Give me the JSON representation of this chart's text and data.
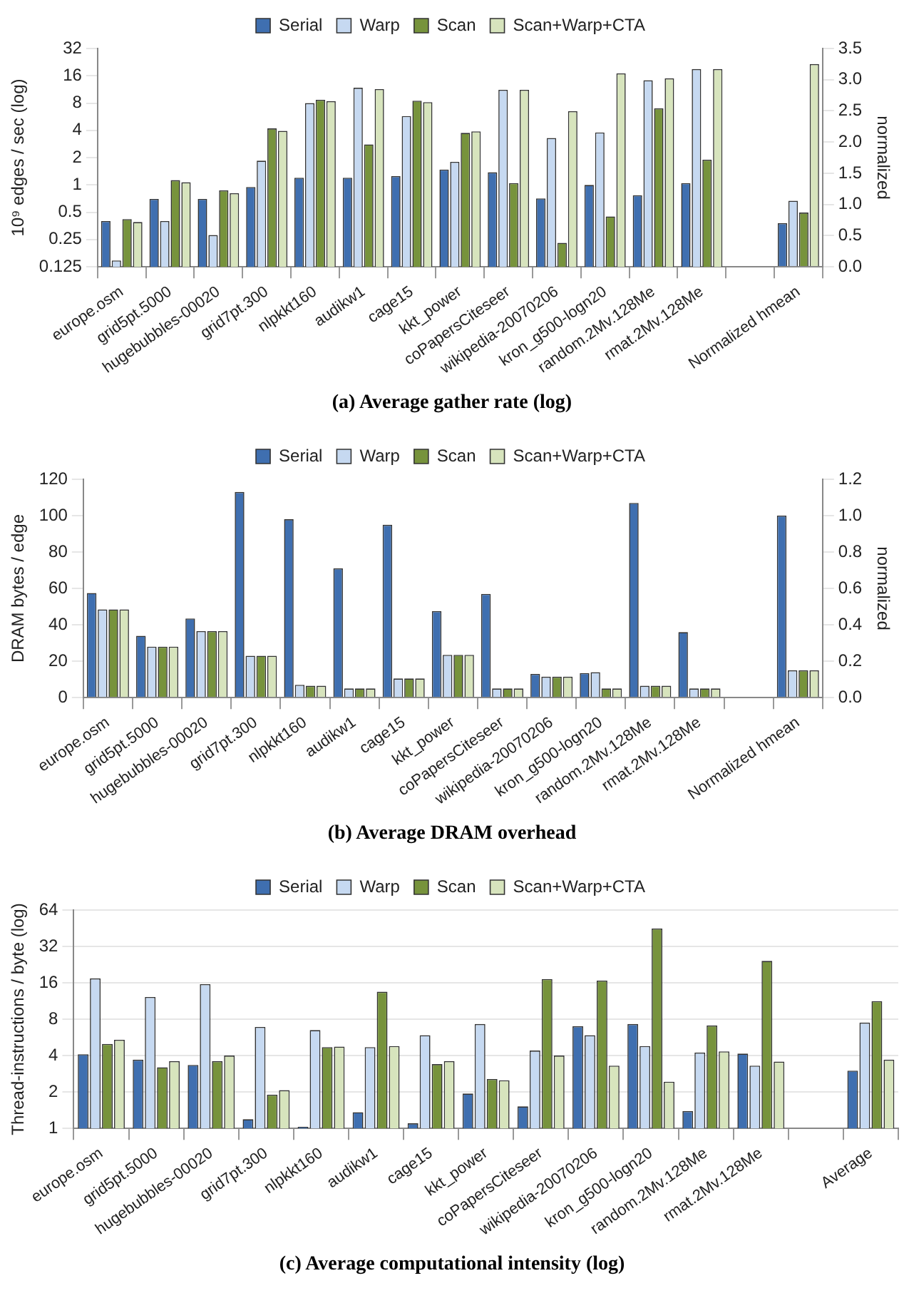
{
  "chart_data": [
    {
      "type": "bar",
      "title": "(a) Average gather rate (log)",
      "ylabel": "10⁹ edges / sec (log)",
      "y2label": "normalized",
      "log": "y",
      "legend": "top",
      "grid": false,
      "categories": [
        "europe.osm",
        "grid5pt.5000",
        "hugebubbles-00020",
        "grid7pt.300",
        "nlpkkt160",
        "audikw1",
        "cage15",
        "kkt_power",
        "coPapersCiteseer",
        "wikipedia-20070206",
        "kron_g500-logn20",
        "random.2Mv.128Me",
        "rmat.2Mv.128Me",
        null,
        "Normalized hmean"
      ],
      "ylim": [
        0.125,
        32
      ],
      "yticks": [
        0.125,
        0.25,
        0.5,
        1,
        2,
        4,
        8,
        16,
        32
      ],
      "y2lim": [
        0,
        3.5
      ],
      "y2ticks": [
        {
          "value": 0,
          "label": "0.0"
        },
        {
          "value": 0.5,
          "label": "0.5"
        },
        {
          "value": 1,
          "label": "1.0"
        },
        {
          "value": 1.5,
          "label": "1.5"
        },
        {
          "value": 2,
          "label": "2.0"
        },
        {
          "value": 2.5,
          "label": "2.5"
        },
        {
          "value": 3,
          "label": "3.0"
        },
        {
          "value": 3.5,
          "label": "3.5"
        }
      ],
      "series": [
        {
          "name": "Serial",
          "color": "#3f6fb0",
          "values": [
            0.4,
            0.7,
            0.7,
            0.95,
            1.2,
            1.2,
            1.25,
            1.48,
            1.38,
            0.71,
            1.0,
            0.77,
            1.05,
            null,
            null
          ]
        },
        {
          "name": "Warp",
          "color": "#c6d9f1",
          "values": [
            0.147,
            0.4,
            0.28,
            1.85,
            8.0,
            11.8,
            5.75,
            1.8,
            11.2,
            3.3,
            3.8,
            14.3,
            19,
            null,
            null
          ]
        },
        {
          "name": "Scan",
          "color": "#77933c",
          "values": [
            0.42,
            1.13,
            0.87,
            4.2,
            8.7,
            2.8,
            8.5,
            3.75,
            1.05,
            0.23,
            0.45,
            7.0,
            1.9,
            null,
            null
          ]
        },
        {
          "name": "Scan+Warp+CTA",
          "color": "#d7e4bd",
          "values": [
            0.39,
            1.07,
            0.81,
            3.95,
            8.4,
            11.4,
            8.2,
            3.9,
            11.2,
            6.5,
            17,
            15,
            19,
            null,
            null
          ]
        },
        {
          "axis": "y2",
          "color": "#3f6fb0",
          "values": [
            null,
            null,
            null,
            null,
            null,
            null,
            null,
            null,
            null,
            null,
            null,
            null,
            null,
            null,
            0.7
          ]
        },
        {
          "axis": "y2",
          "color": "#c6d9f1",
          "values": [
            null,
            null,
            null,
            null,
            null,
            null,
            null,
            null,
            null,
            null,
            null,
            null,
            null,
            null,
            1.06
          ]
        },
        {
          "axis": "y2",
          "color": "#77933c",
          "values": [
            null,
            null,
            null,
            null,
            null,
            null,
            null,
            null,
            null,
            null,
            null,
            null,
            null,
            null,
            0.87
          ]
        },
        {
          "axis": "y2",
          "color": "#d7e4bd",
          "values": [
            null,
            null,
            null,
            null,
            null,
            null,
            null,
            null,
            null,
            null,
            null,
            null,
            null,
            null,
            3.25
          ]
        }
      ]
    },
    {
      "type": "bar",
      "title": "(b) Average DRAM overhead",
      "ylabel": "DRAM bytes / edge",
      "y2label": "normalized",
      "legend": "top",
      "grid": false,
      "categories": [
        "europe.osm",
        "grid5pt.5000",
        "hugebubbles-00020",
        "grid7pt.300",
        "nlpkkt160",
        "audikw1",
        "cage15",
        "kkt_power",
        "coPapersCiteseer",
        "wikipedia-20070206",
        "kron_g500-logn20",
        "random.2Mv.128Me",
        "rmat.2Mv.128Me",
        null,
        "Normalized hmean"
      ],
      "ylim": [
        0,
        120
      ],
      "yticks": [
        0,
        20,
        40,
        60,
        80,
        100,
        120
      ],
      "y2lim": [
        0,
        1.2
      ],
      "y2ticks": [
        {
          "value": 0,
          "label": "0.0"
        },
        {
          "value": 0.2,
          "label": "0.2"
        },
        {
          "value": 0.4,
          "label": "0.4"
        },
        {
          "value": 0.6,
          "label": "0.6"
        },
        {
          "value": 0.8,
          "label": "0.8"
        },
        {
          "value": 1,
          "label": "1.0"
        },
        {
          "value": 1.2,
          "label": "1.2"
        }
      ],
      "series": [
        {
          "name": "Serial",
          "color": "#3f6fb0",
          "values": [
            57.5,
            34,
            43.5,
            113,
            98,
            71,
            95,
            47.5,
            57,
            13,
            13.5,
            107,
            36,
            null,
            null
          ]
        },
        {
          "name": "Warp",
          "color": "#c6d9f1",
          "values": [
            48.5,
            28,
            36.5,
            23,
            7,
            5,
            10.5,
            23.5,
            5,
            11.5,
            14,
            6.5,
            5,
            null,
            null
          ]
        },
        {
          "name": "Scan",
          "color": "#77933c",
          "values": [
            48.5,
            28,
            36.5,
            23,
            6.5,
            5,
            10.5,
            23.5,
            5,
            11.5,
            5,
            6.5,
            5,
            null,
            null
          ]
        },
        {
          "name": "Scan+Warp+CTA",
          "color": "#d7e4bd",
          "values": [
            48.5,
            28,
            36.5,
            23,
            6.5,
            5,
            10.5,
            23.5,
            5,
            11.5,
            5,
            6.5,
            5,
            null,
            null
          ]
        },
        {
          "axis": "y2",
          "color": "#3f6fb0",
          "values": [
            null,
            null,
            null,
            null,
            null,
            null,
            null,
            null,
            null,
            null,
            null,
            null,
            null,
            null,
            1.0
          ]
        },
        {
          "axis": "y2",
          "color": "#c6d9f1",
          "values": [
            null,
            null,
            null,
            null,
            null,
            null,
            null,
            null,
            null,
            null,
            null,
            null,
            null,
            null,
            0.15
          ]
        },
        {
          "axis": "y2",
          "color": "#77933c",
          "values": [
            null,
            null,
            null,
            null,
            null,
            null,
            null,
            null,
            null,
            null,
            null,
            null,
            null,
            null,
            0.15
          ]
        },
        {
          "axis": "y2",
          "color": "#d7e4bd",
          "values": [
            null,
            null,
            null,
            null,
            null,
            null,
            null,
            null,
            null,
            null,
            null,
            null,
            null,
            null,
            0.15
          ]
        }
      ]
    },
    {
      "type": "bar",
      "title": "(c) Average computational intensity (log)",
      "ylabel": "Thread-instructions / byte (log)",
      "log": "y",
      "legend": "top",
      "grid": "y",
      "categories": [
        "europe.osm",
        "grid5pt.5000",
        "hugebubbles-00020",
        "grid7pt.300",
        "nlpkkt160",
        "audikw1",
        "cage15",
        "kkt_power",
        "coPapersCiteseer",
        "wikipedia-20070206",
        "kron_g500-logn20",
        "random.2Mv.128Me",
        "rmat.2Mv.128Me",
        null,
        "Average"
      ],
      "ylim": [
        1,
        64
      ],
      "yticks": [
        1,
        2,
        4,
        8,
        16,
        32,
        64
      ],
      "series": [
        {
          "name": "Serial",
          "color": "#3f6fb0",
          "values": [
            4.1,
            3.7,
            3.35,
            1.19,
            1.03,
            1.36,
            1.1,
            1.94,
            1.52,
            7.0,
            7.3,
            1.39,
            4.15,
            null,
            3.0
          ]
        },
        {
          "name": "Warp",
          "color": "#c6d9f1",
          "values": [
            17.4,
            12.2,
            15.6,
            6.9,
            6.5,
            4.7,
            5.9,
            7.3,
            4.4,
            5.9,
            4.8,
            4.24,
            3.3,
            null,
            7.5
          ]
        },
        {
          "name": "Scan",
          "color": "#77933c",
          "values": [
            5.0,
            3.2,
            3.6,
            1.9,
            4.7,
            13.5,
            3.4,
            2.56,
            17.2,
            16.7,
            45,
            7.1,
            24.3,
            null,
            11.3
          ]
        },
        {
          "name": "Scan+Warp+CTA",
          "color": "#d7e4bd",
          "values": [
            5.4,
            3.6,
            4.0,
            2.07,
            4.75,
            4.8,
            3.6,
            2.5,
            4.0,
            3.3,
            2.43,
            4.33,
            3.57,
            null,
            3.7
          ]
        }
      ]
    }
  ]
}
